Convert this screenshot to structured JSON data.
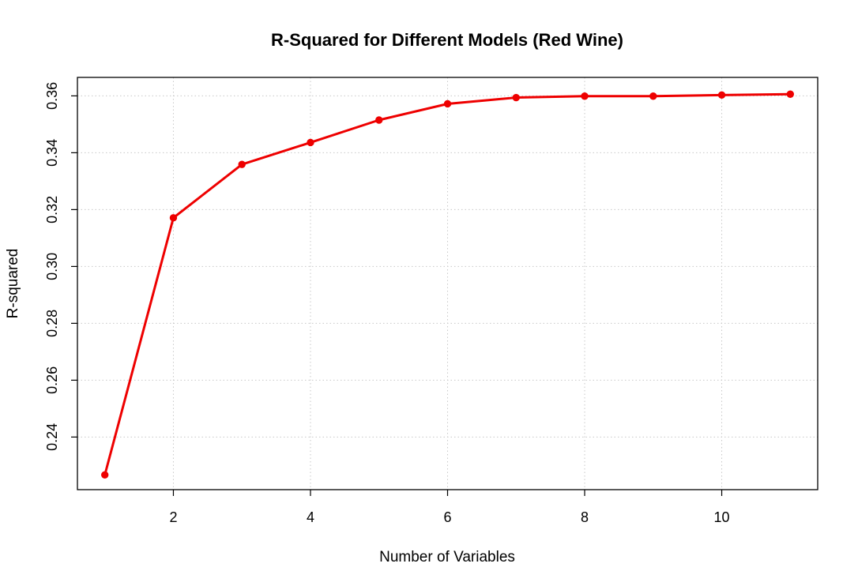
{
  "chart_data": {
    "type": "line",
    "title": "R-Squared for Different Models (Red Wine)",
    "xlabel": "Number of Variables",
    "ylabel": "R-squared",
    "x": [
      1,
      2,
      3,
      4,
      5,
      6,
      7,
      8,
      9,
      10,
      11
    ],
    "series": [
      {
        "values": [
          0.2267,
          0.3171,
          0.3359,
          0.3436,
          0.3515,
          0.3572,
          0.3594,
          0.3599,
          0.3599,
          0.3603,
          0.3606
        ],
        "color": "#ee0000",
        "marker": "filled-circle"
      }
    ],
    "xlim": [
      0.6,
      11.4
    ],
    "ylim": [
      0.2215,
      0.3665
    ],
    "xticks": [
      2,
      4,
      6,
      8,
      10
    ],
    "yticks": [
      0.24,
      0.26,
      0.28,
      0.3,
      0.32,
      0.34,
      0.36
    ],
    "xtick_labels": [
      "2",
      "4",
      "6",
      "8",
      "10"
    ],
    "ytick_labels": [
      "0.24",
      "0.26",
      "0.28",
      "0.30",
      "0.32",
      "0.34",
      "0.36"
    ],
    "grid": true,
    "grid_style": "dotted",
    "grid_color": "#c8c8c8",
    "legend": "none"
  }
}
